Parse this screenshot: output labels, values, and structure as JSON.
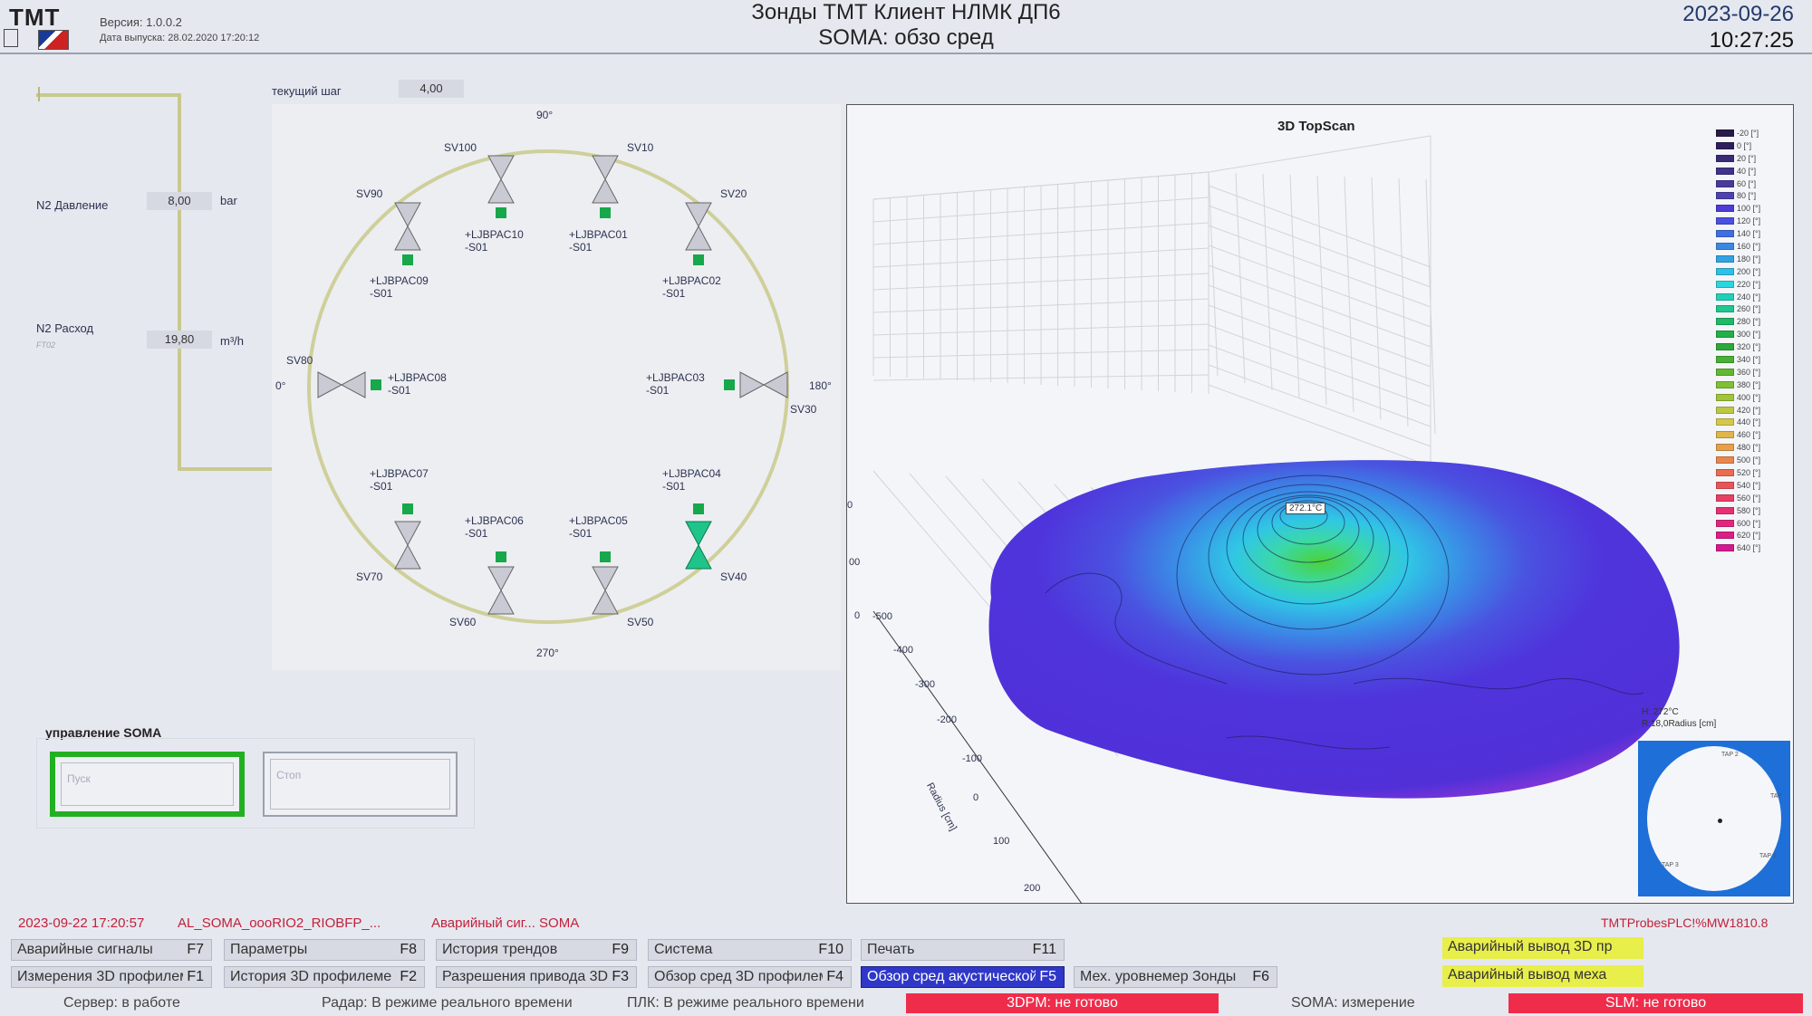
{
  "header": {
    "logo_text": "TMT",
    "version": "Версия: 1.0.0.2",
    "release_date": "Дата выпуска: 28.02.2020 17:20:12",
    "title_line1": "Зонды ТМТ Клиент  НЛМК ДП6",
    "title_line2": "SOMA: обзо сред",
    "date": "2023-09-26",
    "time": "10:27:25"
  },
  "process": {
    "current_step_label": "текущий шаг",
    "current_step_value": "4,00",
    "n2_pressure_label": "N2 Давление",
    "n2_pressure_value": "8,00",
    "n2_pressure_unit": "bar",
    "n2_flow_label": "N2 Расход",
    "n2_flow_tag": "FT02",
    "n2_flow_value": "19,80",
    "n2_flow_unit": "m³/h",
    "angle_top": "90°",
    "angle_bottom": "270°",
    "angle_left": "0°",
    "angle_right": "180°"
  },
  "valves": [
    {
      "name": "SV100",
      "tag1": "+LJBPAC10",
      "tag2": "-S01",
      "state": "closed"
    },
    {
      "name": "SV10",
      "tag1": "+LJBPAC01",
      "tag2": "-S01",
      "state": "closed"
    },
    {
      "name": "SV90",
      "tag1": "+LJBPAC09",
      "tag2": "-S01",
      "state": "closed"
    },
    {
      "name": "SV20",
      "tag1": "+LJBPAC02",
      "tag2": "-S01",
      "state": "closed"
    },
    {
      "name": "SV80",
      "tag1": "+LJBPAC08",
      "tag2": "-S01",
      "state": "closed"
    },
    {
      "name": "SV30",
      "tag1": "+LJBPAC03",
      "tag2": "-S01",
      "state": "closed"
    },
    {
      "name": "SV70",
      "tag1": "+LJBPAC07",
      "tag2": "-S01",
      "state": "closed"
    },
    {
      "name": "SV40",
      "tag1": "+LJBPAC04",
      "tag2": "-S01",
      "state": "open"
    },
    {
      "name": "SV60",
      "tag1": "+LJBPAC06",
      "tag2": "-S01",
      "state": "closed"
    },
    {
      "name": "SV50",
      "tag1": "+LJBPAC05",
      "tag2": "-S01",
      "state": "closed"
    }
  ],
  "control": {
    "title": "управление SOMA",
    "start_label": "Пуск",
    "stop_label": "Стоп"
  },
  "chart": {
    "title": "3D TopScan",
    "peak_label": "272.1°C",
    "z_ticks": [
      "0",
      "00",
      "0"
    ],
    "radius_ticks": [
      "-500",
      "-400",
      "-300",
      "-200",
      "-100",
      "0",
      "100",
      "200"
    ],
    "radius_axis_label": "Radius [cm]",
    "legend": [
      {
        "label": "-20 [°]",
        "color": "#2a1a4a"
      },
      {
        "label": "0 [°]",
        "color": "#2f1e5c"
      },
      {
        "label": "20 [°]",
        "color": "#3a2a78"
      },
      {
        "label": "40 [°]",
        "color": "#40338a"
      },
      {
        "label": "60 [°]",
        "color": "#473b9c"
      },
      {
        "label": "80 [°]",
        "color": "#4d42ae"
      },
      {
        "label": "100 [°]",
        "color": "#4f3bd6"
      },
      {
        "label": "120 [°]",
        "color": "#4a50e0"
      },
      {
        "label": "140 [°]",
        "color": "#3f6ee2"
      },
      {
        "label": "160 [°]",
        "color": "#3a88e4"
      },
      {
        "label": "180 [°]",
        "color": "#32a2e4"
      },
      {
        "label": "200 [°]",
        "color": "#2ec0e6"
      },
      {
        "label": "220 [°]",
        "color": "#2ad6e0"
      },
      {
        "label": "240 [°]",
        "color": "#22d0b8"
      },
      {
        "label": "260 [°]",
        "color": "#1ec890"
      },
      {
        "label": "280 [°]",
        "color": "#1eba66"
      },
      {
        "label": "300 [°]",
        "color": "#22b048"
      },
      {
        "label": "320 [°]",
        "color": "#2ea838"
      },
      {
        "label": "340 [°]",
        "color": "#48b034"
      },
      {
        "label": "360 [°]",
        "color": "#62b832"
      },
      {
        "label": "380 [°]",
        "color": "#80c034"
      },
      {
        "label": "400 [°]",
        "color": "#a0c43a"
      },
      {
        "label": "420 [°]",
        "color": "#bcc844"
      },
      {
        "label": "440 [°]",
        "color": "#d4c84a"
      },
      {
        "label": "460 [°]",
        "color": "#e0b64a"
      },
      {
        "label": "480 [°]",
        "color": "#e4a04c"
      },
      {
        "label": "500 [°]",
        "color": "#e8864e"
      },
      {
        "label": "520 [°]",
        "color": "#ea6c52"
      },
      {
        "label": "540 [°]",
        "color": "#ea5458"
      },
      {
        "label": "560 [°]",
        "color": "#e84064"
      },
      {
        "label": "580 [°]",
        "color": "#e63072"
      },
      {
        "label": "600 [°]",
        "color": "#e2267e"
      },
      {
        "label": "620 [°]",
        "color": "#dc1e88"
      },
      {
        "label": "640 [°]",
        "color": "#d41890"
      }
    ],
    "mini_info_line1": "H: 272°C",
    "mini_info_line2": "R:18,0Radius [cm]",
    "mini_tap_labels": [
      "TAP 2",
      "TAP 3",
      "TAP",
      "TAP 1"
    ]
  },
  "alarm": {
    "timestamp": "2023-09-22 17:20:57",
    "code": "AL_SOMA_oooRIO2_RIOBFP_...",
    "text": "Аварийный сиг... SOMA",
    "plc": "TMTProbesPLC!%MW1810.8"
  },
  "function_buttons": [
    {
      "label": "Аварийные сигналы",
      "key": "F7"
    },
    {
      "label": "Параметры",
      "key": "F8"
    },
    {
      "label": "История трендов",
      "key": "F9"
    },
    {
      "label": "Система",
      "key": "F10"
    },
    {
      "label": "Печать",
      "key": "F11"
    },
    {
      "label": "Измерения 3D профилеме",
      "key": "F1"
    },
    {
      "label": "История 3D профилеме",
      "key": "F2"
    },
    {
      "label": "Разрешения привода 3D",
      "key": "F3"
    },
    {
      "label": "Обзор сред 3D профилем",
      "key": "F4"
    },
    {
      "label": "Обзор сред  акустической",
      "key": "F5"
    },
    {
      "label": "Мех. уровнемер Зонды",
      "key": "F6"
    }
  ],
  "yellow_buttons": {
    "btn1": "Аварийный вывод 3D пр",
    "btn2": "Аварийный вывод меха"
  },
  "status_bar": {
    "server": "Сервер: в работе",
    "radar": "Радар: В режиме реального времени",
    "plc": "ПЛК: В режиме реального времени",
    "dpm": "3DPM: не готово",
    "soma": "SOMA: измерение",
    "slm": "SLM: не готово"
  }
}
